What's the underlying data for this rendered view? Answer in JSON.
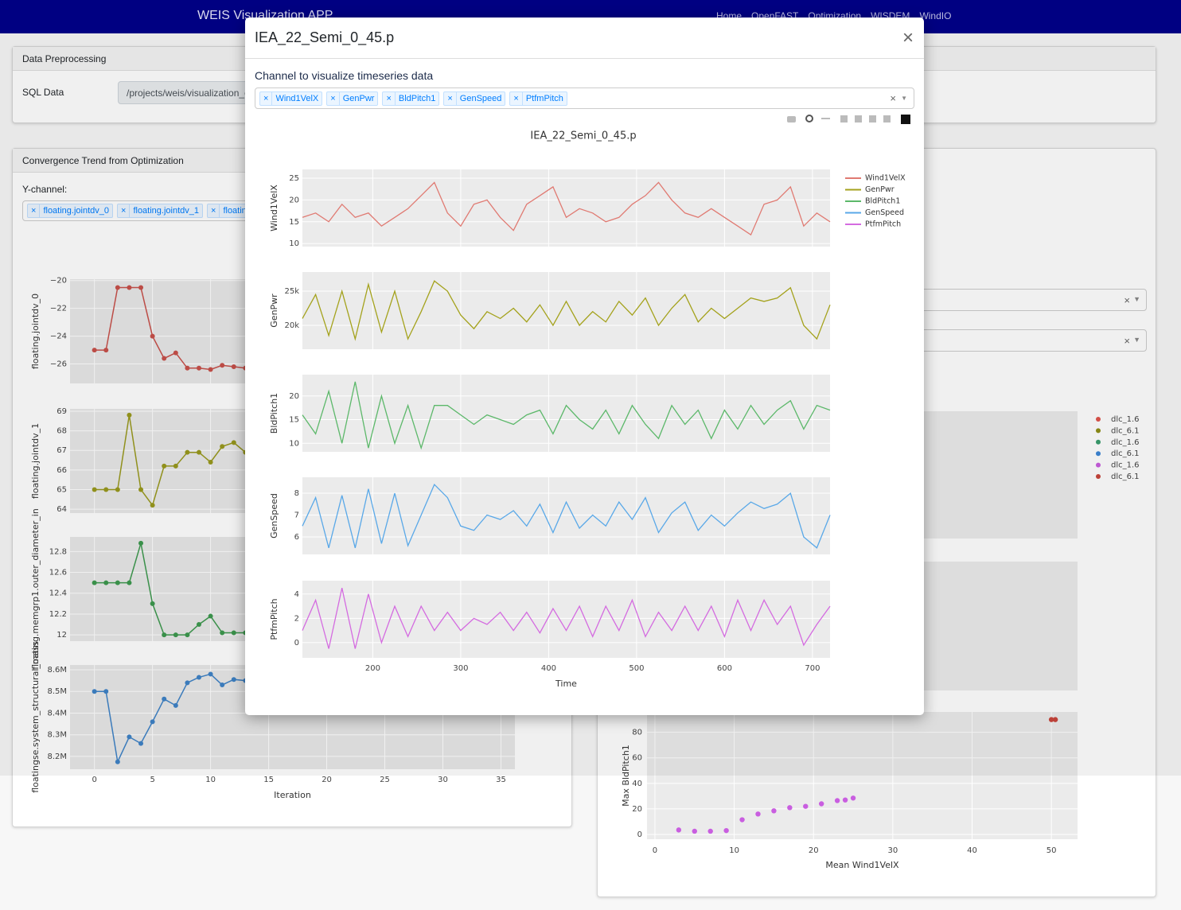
{
  "navbar": {
    "title": "WEIS Visualization APP",
    "links": [
      "Home",
      "OpenFAST",
      "Optimization",
      "WISDEM",
      "WindIO"
    ]
  },
  "preprocessing": {
    "title": "Data Preprocessing",
    "sql_label": "SQL Data",
    "sql_path": "/projects/weis/visualization_c"
  },
  "convergence": {
    "title": "Convergence Trend from Optimization",
    "ychannel_label": "Y-channel:",
    "chips": [
      "floating.jointdv_0",
      "floating.jointdv_1",
      "floating."
    ],
    "chart": {
      "type": "line",
      "xlabel": "Iteration",
      "x": [
        0,
        1,
        2,
        3,
        4,
        5,
        6,
        7,
        8,
        9,
        10,
        11,
        12,
        13
      ],
      "xlim": [
        -2.1,
        36.2
      ],
      "xticks": [
        0,
        5,
        10,
        15,
        20,
        25,
        30,
        35
      ],
      "series": [
        {
          "name": "floating.jointdv_0",
          "color": "#c8514b",
          "values": [
            -25,
            -25,
            -20.5,
            -20.5,
            -20.5,
            -24,
            -25.6,
            -25.2,
            -26.3,
            -26.3,
            -26.4,
            -26.1,
            -26.2,
            -26.3
          ],
          "ylim": [
            -27.4,
            -19.9
          ],
          "yticks": [
            {
              "value": -20,
              "label": "−20"
            },
            {
              "value": -22,
              "label": "−22"
            },
            {
              "value": -24,
              "label": "−24"
            },
            {
              "value": -26,
              "label": "−26"
            }
          ]
        },
        {
          "name": "floating.jointdv_1",
          "color": "#9a9a1e",
          "values": [
            65,
            65,
            65,
            68.8,
            65,
            64.2,
            66.2,
            66.2,
            66.9,
            66.9,
            66.4,
            67.2,
            67.4,
            66.9
          ],
          "ylim": [
            63.8,
            69.12
          ],
          "yticks": [
            64,
            65,
            66,
            67,
            68,
            69
          ]
        },
        {
          "name": "floating.memgrp1.outer_diameter_in",
          "color": "#3e9a4f",
          "values": [
            12.5,
            12.5,
            12.5,
            12.5,
            12.88,
            12.3,
            12,
            12,
            12,
            12.1,
            12.18,
            12.02,
            12.02,
            12.02
          ],
          "ylim": [
            11.94,
            12.94
          ],
          "yticks": [
            12,
            12.2,
            12.4,
            12.6,
            12.8
          ]
        },
        {
          "name": "floatingse.system_structural_mass",
          "color": "#3f83c7",
          "values": [
            8500000,
            8500000,
            8175000,
            8290000,
            8260000,
            8360000,
            8465000,
            8435000,
            8540000,
            8565000,
            8580000,
            8530000,
            8555000,
            8550000
          ],
          "ylim": [
            8141000,
            8622000
          ],
          "yticks": [
            {
              "value": 8200000,
              "label": "8.2M"
            },
            {
              "value": 8300000,
              "label": "8.3M"
            },
            {
              "value": 8400000,
              "label": "8.4M"
            },
            {
              "value": 8500000,
              "label": "8.5M"
            },
            {
              "value": 8600000,
              "label": "8.6M"
            }
          ]
        }
      ]
    }
  },
  "scatter": {
    "type": "scatter",
    "xlabel": "Mean Wind1VelX",
    "ylabel": "Max BldPitch1",
    "xlim": [
      -1,
      53.3
    ],
    "ylim": [
      -3.75,
      96
    ],
    "xticks": [
      0,
      10,
      20,
      30,
      40,
      50
    ],
    "yticks": [
      0,
      20,
      40,
      60,
      80
    ],
    "series": [
      {
        "name": "dlc_1.6",
        "color": "#e0544c"
      },
      {
        "name": "dlc_6.1",
        "color": "#8f8f17"
      },
      {
        "name": "dlc_1.6",
        "color": "#3a9e6e"
      },
      {
        "name": "dlc_6.1",
        "color": "#3d86d6"
      },
      {
        "name": "dlc_1.6",
        "color": "#c95ee0",
        "x": [
          3,
          5,
          7,
          9,
          11,
          13,
          15,
          17,
          19,
          21,
          23,
          24,
          25
        ],
        "values": [
          3.5,
          2.5,
          2.5,
          3,
          11.5,
          16,
          18.5,
          21,
          22,
          24,
          26.5,
          27,
          28.5
        ]
      },
      {
        "name": "dlc_6.1",
        "color": "#c8463c",
        "x": [
          50,
          50.5
        ],
        "values": [
          90,
          90
        ]
      }
    ]
  },
  "modal": {
    "title": "IEA_22_Semi_0_45.p",
    "label": "Channel to visualize timeseries data",
    "chips": [
      "Wind1VelX",
      "GenPwr",
      "BldPitch1",
      "GenSpeed",
      "PtfmPitch"
    ],
    "chart": {
      "type": "line",
      "title": "IEA_22_Semi_0_45.p",
      "xlabel": "Time",
      "x": [
        120,
        135,
        150,
        165,
        180,
        195,
        210,
        225,
        240,
        255,
        270,
        285,
        300,
        315,
        330,
        345,
        360,
        375,
        390,
        405,
        420,
        435,
        450,
        465,
        480,
        495,
        510,
        525,
        540,
        555,
        570,
        585,
        600,
        615,
        630,
        645,
        660,
        675,
        690,
        705,
        720
      ],
      "xlim": [
        120,
        720
      ],
      "xticks": [
        200,
        300,
        400,
        500,
        600,
        700
      ],
      "series": [
        {
          "name": "Wind1VelX",
          "color": "#e07a72",
          "ylim": [
            9.3,
            27
          ],
          "yticks": [
            10,
            15,
            20,
            25
          ],
          "values": [
            16,
            17,
            15,
            19,
            16,
            17,
            14,
            16,
            18,
            21,
            24,
            17,
            14,
            19,
            20,
            16,
            13,
            19,
            21,
            23,
            16,
            18,
            17,
            15,
            16,
            19,
            21,
            24,
            20,
            17,
            16,
            18,
            16,
            14,
            12,
            19,
            20,
            23,
            14,
            17,
            15
          ]
        },
        {
          "name": "GenPwr",
          "color": "#a4a21c",
          "ylim": [
            16500,
            27800
          ],
          "yticks": [
            {
              "value": 20000,
              "label": "20k"
            },
            {
              "value": 25000,
              "label": "25k"
            }
          ],
          "values": [
            21000,
            24500,
            18500,
            25000,
            18000,
            26000,
            19000,
            25000,
            18000,
            22000,
            26500,
            25000,
            21500,
            19500,
            22000,
            21000,
            22500,
            20500,
            23000,
            20000,
            23500,
            20000,
            22000,
            20500,
            23500,
            21500,
            24000,
            20000,
            22500,
            24500,
            20500,
            22500,
            21000,
            22500,
            24000,
            23500,
            24000,
            25500,
            20000,
            18000,
            23000
          ]
        },
        {
          "name": "BldPitch1",
          "color": "#5cb86a",
          "ylim": [
            8.2,
            24.5
          ],
          "yticks": [
            10,
            15,
            20
          ],
          "values": [
            16,
            12,
            21,
            10,
            23,
            9,
            20,
            10,
            18,
            9,
            18,
            18,
            16,
            14,
            16,
            15,
            14,
            16,
            17,
            12,
            18,
            15,
            13,
            17,
            12,
            18,
            14,
            11,
            18,
            14,
            17,
            11,
            17,
            13,
            18,
            14,
            17,
            19,
            13,
            18,
            17
          ]
        },
        {
          "name": "GenSpeed",
          "color": "#59a8e8",
          "ylim": [
            5.2,
            8.73
          ],
          "yticks": [
            6,
            7,
            8
          ],
          "values": [
            6.5,
            7.8,
            5.5,
            7.9,
            5.5,
            8.2,
            5.7,
            8,
            5.6,
            7,
            8.4,
            7.8,
            6.5,
            6.3,
            7,
            6.8,
            7.2,
            6.5,
            7.5,
            6.2,
            7.6,
            6.4,
            7,
            6.5,
            7.6,
            6.8,
            7.8,
            6.2,
            7.1,
            7.6,
            6.3,
            7,
            6.5,
            7.1,
            7.6,
            7.3,
            7.5,
            8,
            6,
            5.5,
            7
          ]
        },
        {
          "name": "PtfmPitch",
          "color": "#d46be0",
          "ylim": [
            -1.25,
            5.1
          ],
          "yticks": [
            0,
            2,
            4
          ],
          "values": [
            1,
            3.5,
            -0.5,
            4.5,
            -0.5,
            4,
            0,
            3,
            0.5,
            3,
            1,
            2.5,
            1,
            2,
            1.5,
            2.5,
            1,
            2.5,
            0.8,
            2.8,
            1,
            3,
            0.5,
            3,
            1,
            3.5,
            0.5,
            2.5,
            1,
            3,
            1,
            3,
            0.5,
            3.5,
            1,
            3.5,
            1.5,
            3,
            -0.2,
            1.5,
            3
          ]
        }
      ]
    }
  }
}
